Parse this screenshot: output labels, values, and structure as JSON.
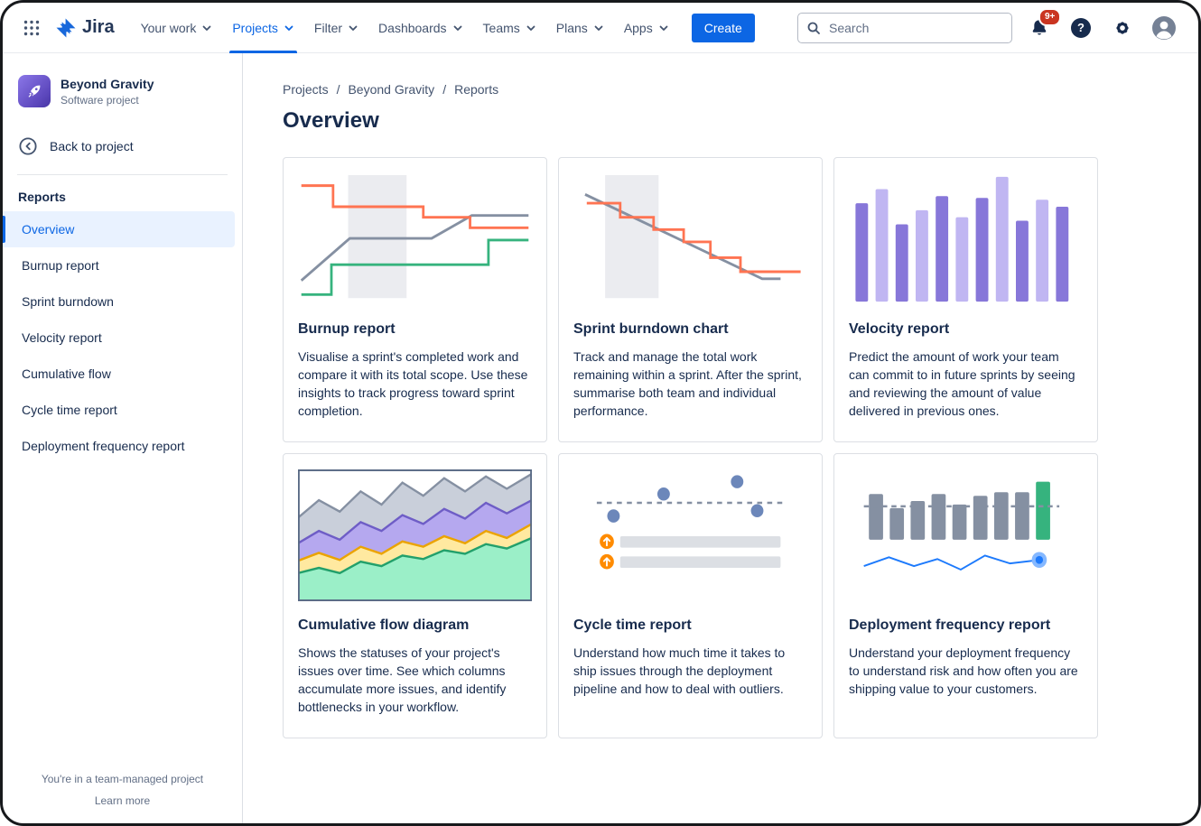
{
  "topnav": {
    "logo_label": "Jira",
    "items": [
      {
        "label": "Your work"
      },
      {
        "label": "Projects",
        "active": true
      },
      {
        "label": "Filter"
      },
      {
        "label": "Dashboards"
      },
      {
        "label": "Teams"
      },
      {
        "label": "Plans"
      },
      {
        "label": "Apps"
      }
    ],
    "create_label": "Create",
    "search": {
      "placeholder": "Search"
    },
    "notifications_badge": "9+",
    "help_glyph": "?"
  },
  "sidebar": {
    "project": {
      "name": "Beyond Gravity",
      "type": "Software project"
    },
    "back_label": "Back to project",
    "section_title": "Reports",
    "items": [
      {
        "label": "Overview",
        "active": true
      },
      {
        "label": "Burnup report"
      },
      {
        "label": "Sprint burndown"
      },
      {
        "label": "Velocity report"
      },
      {
        "label": "Cumulative flow"
      },
      {
        "label": "Cycle time report"
      },
      {
        "label": "Deployment frequency report"
      }
    ],
    "footer": {
      "note": "You're in a team-managed project",
      "link": "Learn more"
    }
  },
  "main": {
    "breadcrumb": [
      {
        "label": "Projects"
      },
      {
        "label": "Beyond Gravity"
      },
      {
        "label": "Reports"
      }
    ],
    "breadcrumb_separator": "/",
    "title": "Overview",
    "cards": [
      {
        "title": "Burnup report",
        "description": "Visualise a sprint's completed work and compare it with its total scope. Use these insights to track progress toward sprint completion."
      },
      {
        "title": "Sprint burndown chart",
        "description": "Track and manage the total work remaining within a sprint. After the sprint, summarise both team and individual performance."
      },
      {
        "title": "Velocity report",
        "description": "Predict the amount of work your team can commit to in future sprints by seeing and reviewing the amount of value delivered in previous ones."
      },
      {
        "title": "Cumulative flow diagram",
        "description": "Shows the statuses of your project's issues over time. See which columns accumulate more issues, and identify bottlenecks in your workflow."
      },
      {
        "title": "Cycle time report",
        "description": "Understand how much time it takes to ship issues through the deployment pipeline and how to deal with outliers."
      },
      {
        "title": "Deployment frequency report",
        "description": "Understand your deployment frequency to understand risk and how often you are shipping value to your customers."
      }
    ]
  },
  "thumbnails": {
    "velocity_bars": [
      112,
      128,
      88,
      104,
      120,
      96,
      118,
      142,
      92,
      116,
      108
    ],
    "velocity_colors": {
      "dark": "#8777D9",
      "light": "#C0B6F2"
    },
    "deployment_bars": [
      52,
      36,
      44,
      52,
      40,
      50,
      54,
      54,
      66
    ],
    "deployment_colors": {
      "bar": "#8590A2",
      "highlight": "#36B37E"
    }
  },
  "colors": {
    "accent": "#0C66E4",
    "badge_red": "#CA3521"
  }
}
